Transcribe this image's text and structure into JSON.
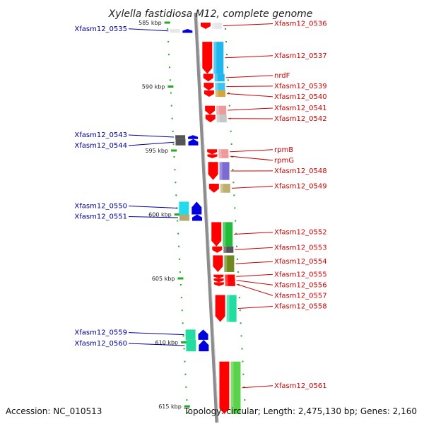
{
  "title": "Xylella fastidiosa M12, complete genome",
  "footer": {
    "accession": "Accession: NC_010513",
    "summary": "Topology: circular; Length: 2,475,130 bp; Genes: 2,160"
  },
  "ticks": [
    {
      "label": "585 kbp",
      "kbp": 585
    },
    {
      "label": "590 kbp",
      "kbp": 590
    },
    {
      "label": "595 kbp",
      "kbp": 595
    },
    {
      "label": "600 kbp",
      "kbp": 600
    },
    {
      "label": "605 kbp",
      "kbp": 605
    },
    {
      "label": "610 kbp",
      "kbp": 610
    },
    {
      "label": "615 kbp",
      "kbp": 615
    }
  ],
  "genes": [
    {
      "name": "Xfasm12_0536",
      "strand": "-",
      "start": 585.0,
      "end": 585.5,
      "color": "#e8e8e8",
      "side": "right"
    },
    {
      "name": "Xfasm12_0535",
      "strand": "+",
      "start": 585.5,
      "end": 585.8,
      "color": "#e8e8e8",
      "side": "left"
    },
    {
      "name": "Xfasm12_0537",
      "strand": "-",
      "start": 586.5,
      "end": 589.0,
      "color": "#1fb6ee",
      "side": "right"
    },
    {
      "name": "nrdF",
      "strand": "-",
      "start": 589.0,
      "end": 589.6,
      "color": "#1fb6ee",
      "side": "right"
    },
    {
      "name": "Xfasm12_0539",
      "strand": "-",
      "start": 589.7,
      "end": 590.3,
      "color": "#3cc4f0",
      "side": "right"
    },
    {
      "name": "Xfasm12_0540",
      "strand": "-",
      "start": 590.3,
      "end": 590.8,
      "color": "#d4a53a",
      "side": "right"
    },
    {
      "name": "Xfasm12_0541",
      "strand": "-",
      "start": 591.5,
      "end": 592.2,
      "color": "#ee9a9a",
      "side": "right"
    },
    {
      "name": "Xfasm12_0542",
      "strand": "-",
      "start": 592.2,
      "end": 592.8,
      "color": "#c6c6c6",
      "side": "right"
    },
    {
      "name": "Xfasm12_0543",
      "strand": "+",
      "start": 593.8,
      "end": 594.1,
      "color": "#555555",
      "side": "left"
    },
    {
      "name": "Xfasm12_0544",
      "strand": "+",
      "start": 594.1,
      "end": 594.6,
      "color": "#555555",
      "side": "left"
    },
    {
      "name": "rpmB",
      "strand": "-",
      "start": 594.9,
      "end": 595.3,
      "color": "#ee9a9a",
      "side": "right"
    },
    {
      "name": "rpmG",
      "strand": "-",
      "start": 595.3,
      "end": 595.6,
      "color": "#ee9a9a",
      "side": "right"
    },
    {
      "name": "Xfasm12_0548",
      "strand": "-",
      "start": 595.9,
      "end": 597.3,
      "color": "#7a6ad2",
      "side": "right"
    },
    {
      "name": "Xfasm12_0549",
      "strand": "-",
      "start": 597.6,
      "end": 598.3,
      "color": "#bdb06e",
      "side": "right"
    },
    {
      "name": "Xfasm12_0550",
      "strand": "+",
      "start": 599.0,
      "end": 600.0,
      "color": "#22dcee",
      "side": "left"
    },
    {
      "name": "Xfasm12_0551",
      "strand": "+",
      "start": 600.0,
      "end": 600.5,
      "color": "#b5ab72",
      "side": "left"
    },
    {
      "name": "Xfasm12_0552",
      "strand": "-",
      "start": 600.6,
      "end": 602.5,
      "color": "#22bb3a",
      "side": "right"
    },
    {
      "name": "Xfasm12_0553",
      "strand": "-",
      "start": 602.5,
      "end": 603.0,
      "color": "#555555",
      "side": "right"
    },
    {
      "name": "Xfasm12_0554",
      "strand": "-",
      "start": 603.2,
      "end": 604.5,
      "color": "#6e8a1c",
      "side": "right"
    },
    {
      "name": "Xfasm12_0555",
      "strand": "-",
      "start": 604.7,
      "end": 605.0,
      "color": "#ff0000",
      "side": "right"
    },
    {
      "name": "Xfasm12_0556",
      "strand": "-",
      "start": 605.0,
      "end": 605.3,
      "color": "#ff0000",
      "side": "right"
    },
    {
      "name": "Xfasm12_0557",
      "strand": "-",
      "start": 605.3,
      "end": 605.6,
      "color": "#ff0000",
      "side": "right"
    },
    {
      "name": "Xfasm12_0558",
      "strand": "-",
      "start": 606.3,
      "end": 608.4,
      "color": "#22dca0",
      "side": "right"
    },
    {
      "name": "Xfasm12_0559",
      "strand": "+",
      "start": 609.0,
      "end": 609.8,
      "color": "#22dca0",
      "side": "left"
    },
    {
      "name": "Xfasm12_0560",
      "strand": "+",
      "start": 609.8,
      "end": 610.7,
      "color": "#22dca0",
      "side": "left"
    },
    {
      "name": "Xfasm12_0561",
      "strand": "-",
      "start": 611.5,
      "end": 615.6,
      "color": "#5ad24a",
      "side": "right"
    }
  ],
  "colors": {
    "backbone": "#8c8c8c",
    "tick": "#22aa22",
    "forward_arrow": "#0000dd",
    "reverse_arrow": "#ff0000",
    "right_label": "#cc0000",
    "left_label": "#00009a"
  }
}
